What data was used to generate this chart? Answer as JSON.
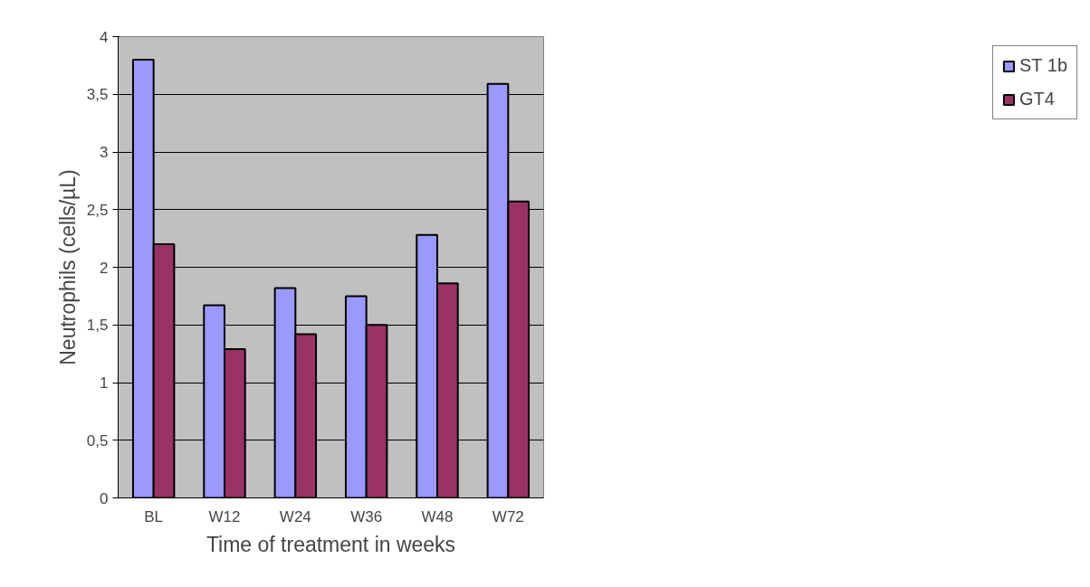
{
  "chart_data": {
    "type": "bar",
    "xlabel": "Time of treatment in weeks",
    "ylabel": "Neutrophils (cells/µL)",
    "categories": [
      "BL",
      "W12",
      "W24",
      "W36",
      "W48",
      "W72"
    ],
    "series": [
      {
        "name": "ST 1b",
        "color": "#9999ff",
        "values": [
          3.8,
          1.67,
          1.82,
          1.75,
          2.28,
          3.59
        ]
      },
      {
        "name": "GT4",
        "color": "#993366",
        "values": [
          2.2,
          1.29,
          1.42,
          1.5,
          1.86,
          2.57
        ]
      }
    ],
    "ylim": [
      0,
      4
    ],
    "yticks": [
      0,
      {
        "value": 0.5,
        "label": "0,5"
      },
      1,
      {
        "value": 1.5,
        "label": "1,5"
      },
      2,
      {
        "value": 2.5,
        "label": "2,5"
      },
      3,
      {
        "value": 3.5,
        "label": "3,5"
      },
      4
    ],
    "grid": "y",
    "legend": "right"
  }
}
